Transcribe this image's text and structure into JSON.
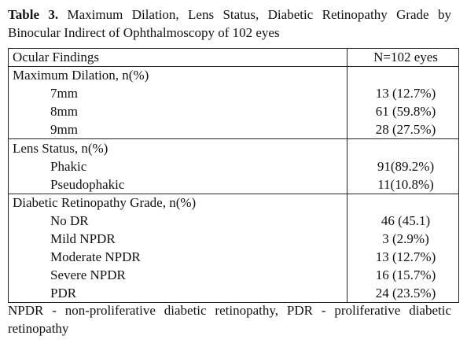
{
  "title": {
    "label": "Table 3.",
    "text": "Maximum Dilation, Lens Status, Diabetic Retinopathy Grade by Binocular Indirect of Ophthalmoscopy of 102 eyes"
  },
  "table": {
    "header": [
      "Ocular Findings",
      "N=102 eyes"
    ],
    "sections": [
      {
        "title": "Maximum Dilation, n(%)",
        "rows": [
          [
            "7mm",
            "13 (12.7%)"
          ],
          [
            "8mm",
            "61 (59.8%)"
          ],
          [
            "9mm",
            "28 (27.5%)"
          ]
        ]
      },
      {
        "title": "Lens Status, n(%)",
        "rows": [
          [
            "Phakic",
            "91(89.2%)"
          ],
          [
            "Pseudophakic",
            "11(10.8%)"
          ]
        ]
      },
      {
        "title": "Diabetic Retinopathy Grade, n(%)",
        "rows": [
          [
            "No DR",
            "46 (45.1)"
          ],
          [
            "Mild NPDR",
            "3 (2.9%)"
          ],
          [
            "Moderate NPDR",
            "13 (12.7%)"
          ],
          [
            "Severe NPDR",
            "16 (15.7%)"
          ],
          [
            "PDR",
            "24 (23.5%)"
          ]
        ]
      }
    ]
  },
  "footnote": "NPDR - non-proliferative diabetic retinopathy, PDR - proliferative diabetic retinopathy"
}
